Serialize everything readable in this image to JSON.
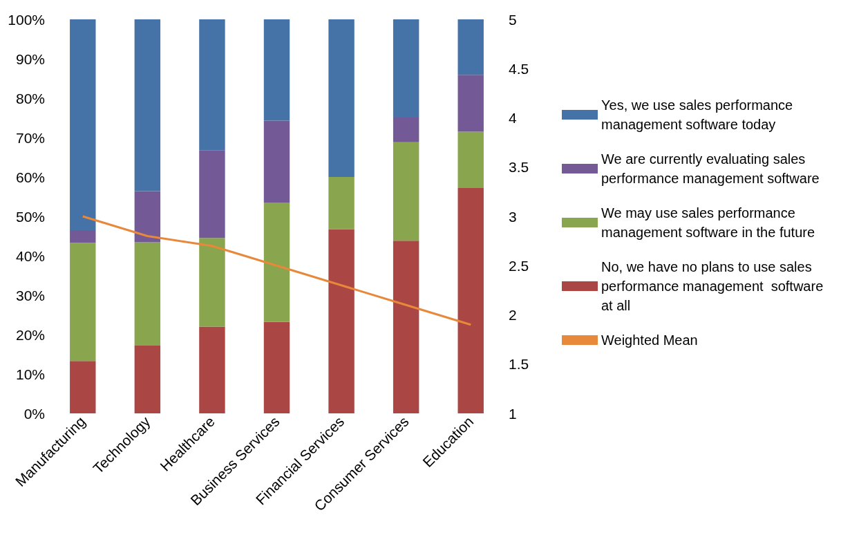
{
  "chart_data": {
    "type": "bar",
    "stacked": true,
    "categories": [
      "Manufacturing",
      "Technology",
      "Healthcare",
      "Business Services",
      "Financial Services",
      "Consumer Services",
      "Education"
    ],
    "series": [
      {
        "name": "No, we have no plans to use sales performance management  software at all",
        "color": "#aa4643",
        "values": [
          13.3,
          17.2,
          22,
          23.2,
          46.7,
          43.8,
          57.2
        ]
      },
      {
        "name": "We may use sales performance management software in the future",
        "color": "#89a54e",
        "values": [
          30,
          26.2,
          22.5,
          30.3,
          13.3,
          25,
          14.3
        ]
      },
      {
        "name": "We are currently evaluating sales performance management software",
        "color": "#735a96",
        "values": [
          3.2,
          13,
          22.3,
          20.8,
          0,
          6.3,
          14.4
        ]
      },
      {
        "name": "Yes, we use sales performance management software today",
        "color": "#4573a7",
        "values": [
          53.5,
          43.6,
          33.2,
          25.7,
          40,
          24.9,
          14.1
        ]
      },
      {
        "name": "Weighted Mean",
        "type": "line",
        "axis": "y2",
        "color": "#e8883a",
        "marker": "none",
        "values": [
          3.0,
          2.8,
          2.7,
          2.5,
          2.3,
          2.1,
          1.9
        ]
      }
    ],
    "ylim": [
      0,
      100
    ],
    "yticks": [
      {
        "value": 0,
        "label": "0%"
      },
      {
        "value": 10,
        "label": "10%"
      },
      {
        "value": 20,
        "label": "20%"
      },
      {
        "value": 30,
        "label": "30%"
      },
      {
        "value": 40,
        "label": "40%"
      },
      {
        "value": 50,
        "label": "50%"
      },
      {
        "value": 60,
        "label": "60%"
      },
      {
        "value": 70,
        "label": "70%"
      },
      {
        "value": 80,
        "label": "80%"
      },
      {
        "value": 90,
        "label": "90%"
      },
      {
        "value": 100,
        "label": "100%"
      }
    ],
    "y2lim": [
      1,
      5
    ],
    "y2ticks": [
      1,
      1.5,
      2,
      2.5,
      3,
      3.5,
      4,
      4.5,
      5
    ],
    "grid": false,
    "legend": "right"
  }
}
